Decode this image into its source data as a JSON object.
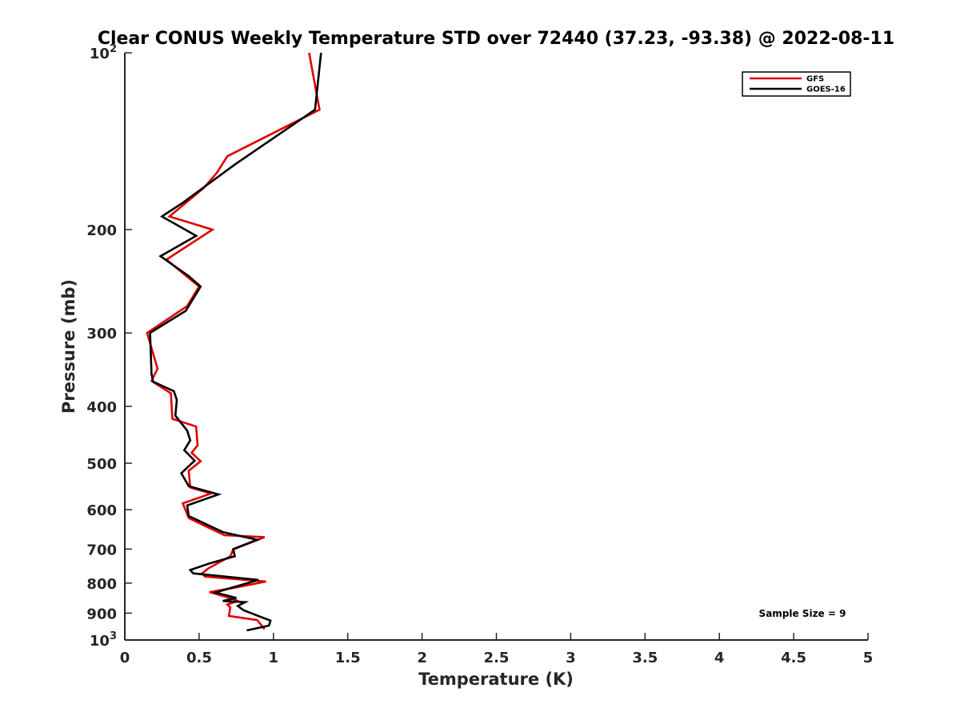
{
  "chart_data": {
    "type": "line",
    "title": "Clear CONUS Weekly Temperature STD over 72440 (37.23, -93.38) @ 2022-08-11",
    "xlabel": "Temperature (K)",
    "ylabel": "Pressure (mb)",
    "xlim": [
      0,
      5
    ],
    "ylim": [
      100,
      1000
    ],
    "y_scale": "log",
    "y_reversed": true,
    "grid": false,
    "legend_position": "top-right",
    "x_ticks": [
      0,
      0.5,
      1,
      1.5,
      2,
      2.5,
      3,
      3.5,
      4,
      4.5,
      5
    ],
    "x_tick_labels": [
      "0",
      "0.5",
      "1",
      "1.5",
      "2",
      "2.5",
      "3",
      "3.5",
      "4",
      "4.5",
      "5"
    ],
    "y_ticks": [
      100,
      200,
      300,
      400,
      500,
      600,
      700,
      800,
      900,
      1000
    ],
    "y_tick_labels": [
      {
        "base": "10",
        "exp": "2"
      },
      {
        "text": "200"
      },
      {
        "text": "300"
      },
      {
        "text": "400"
      },
      {
        "text": "500"
      },
      {
        "text": "600"
      },
      {
        "text": "700"
      },
      {
        "text": "800"
      },
      {
        "text": "900"
      },
      {
        "base": "10",
        "exp": "3"
      }
    ],
    "series": [
      {
        "name": "GFS",
        "color": "#e00000",
        "points": [
          [
            1.24,
            100
          ],
          [
            1.31,
            125
          ],
          [
            0.69,
            150
          ],
          [
            0.62,
            160
          ],
          [
            0.53,
            170
          ],
          [
            0.3,
            190
          ],
          [
            0.59,
            200
          ],
          [
            0.28,
            225
          ],
          [
            0.44,
            243
          ],
          [
            0.5,
            250
          ],
          [
            0.42,
            270
          ],
          [
            0.15,
            300
          ],
          [
            0.22,
            345
          ],
          [
            0.18,
            362
          ],
          [
            0.31,
            380
          ],
          [
            0.32,
            420
          ],
          [
            0.48,
            433
          ],
          [
            0.49,
            466
          ],
          [
            0.45,
            480
          ],
          [
            0.51,
            496
          ],
          [
            0.43,
            515
          ],
          [
            0.44,
            550
          ],
          [
            0.58,
            563
          ],
          [
            0.39,
            585
          ],
          [
            0.43,
            620
          ],
          [
            0.67,
            663
          ],
          [
            0.94,
            668
          ],
          [
            0.73,
            701
          ],
          [
            0.71,
            720
          ],
          [
            0.56,
            756
          ],
          [
            0.52,
            770
          ],
          [
            0.54,
            780
          ],
          [
            0.95,
            795
          ],
          [
            0.79,
            810
          ],
          [
            0.57,
            829
          ],
          [
            0.73,
            851
          ],
          [
            0.76,
            858
          ],
          [
            0.69,
            870
          ],
          [
            0.71,
            880
          ],
          [
            0.7,
            910
          ],
          [
            0.89,
            925
          ],
          [
            0.94,
            958
          ]
        ]
      },
      {
        "name": "GOES-16",
        "color": "#000000",
        "points": [
          [
            1.32,
            100
          ],
          [
            1.28,
            125
          ],
          [
            0.74,
            155
          ],
          [
            0.39,
            180
          ],
          [
            0.25,
            190
          ],
          [
            0.48,
            205
          ],
          [
            0.24,
            222
          ],
          [
            0.43,
            240
          ],
          [
            0.51,
            250
          ],
          [
            0.41,
            275
          ],
          [
            0.17,
            300
          ],
          [
            0.18,
            352
          ],
          [
            0.19,
            363
          ],
          [
            0.33,
            377
          ],
          [
            0.35,
            390
          ],
          [
            0.34,
            415
          ],
          [
            0.42,
            440
          ],
          [
            0.44,
            457
          ],
          [
            0.4,
            475
          ],
          [
            0.47,
            495
          ],
          [
            0.38,
            520
          ],
          [
            0.43,
            547
          ],
          [
            0.63,
            565
          ],
          [
            0.42,
            590
          ],
          [
            0.43,
            615
          ],
          [
            0.66,
            655
          ],
          [
            0.89,
            675
          ],
          [
            0.73,
            700
          ],
          [
            0.74,
            720
          ],
          [
            0.56,
            742
          ],
          [
            0.44,
            760
          ],
          [
            0.46,
            770
          ],
          [
            0.9,
            790
          ],
          [
            0.61,
            830
          ],
          [
            0.75,
            848
          ],
          [
            0.66,
            858
          ],
          [
            0.81,
            862
          ],
          [
            0.76,
            875
          ],
          [
            0.8,
            890
          ],
          [
            0.98,
            927
          ],
          [
            0.97,
            945
          ],
          [
            0.82,
            963
          ]
        ]
      }
    ],
    "annotation": "Sample Size = 9"
  }
}
